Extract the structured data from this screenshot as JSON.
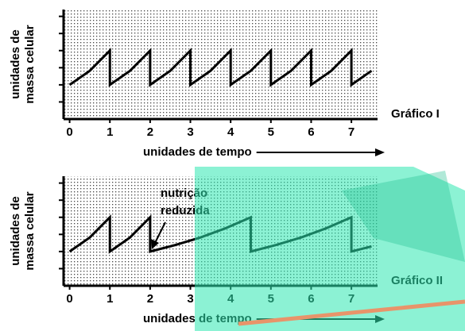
{
  "chart_data": [
    {
      "type": "line",
      "title": "Gráfico I",
      "ylabel": [
        "unidades de",
        "massa celular"
      ],
      "xlabel": "unidades de tempo",
      "x": [
        0,
        0.5,
        1,
        1,
        1.5,
        2,
        2,
        2.5,
        3,
        3,
        3.5,
        4,
        4,
        4.5,
        5,
        5,
        5.5,
        6,
        6,
        6.5,
        7,
        7,
        7.5
      ],
      "values": [
        1,
        1.41,
        2,
        1,
        1.41,
        2,
        1,
        1.41,
        2,
        1,
        1.41,
        2,
        1,
        1.41,
        2,
        1,
        1.41,
        2,
        1,
        1.41,
        2,
        1,
        1.41
      ],
      "color": "#000000",
      "xlim": [
        -0.15,
        7.65
      ],
      "xticks": [
        0,
        1,
        2,
        3,
        4,
        5,
        6,
        7
      ],
      "ylim": [
        0,
        3.2
      ],
      "yticks": [
        0.5,
        1,
        1.5,
        2,
        2.5,
        3
      ]
    },
    {
      "type": "line",
      "title": "Gráfico II",
      "ylabel": [
        "unidades de",
        "massa celular"
      ],
      "xlabel": "unidades de tempo",
      "annotation": [
        "nutrição",
        "reduzida"
      ],
      "x": [
        0,
        0.5,
        1,
        1,
        1.5,
        2,
        2,
        2.625,
        3.25,
        3.875,
        4.5,
        4.5,
        5.125,
        5.75,
        6.375,
        7,
        7,
        7.5
      ],
      "values": [
        1,
        1.41,
        2,
        1,
        1.41,
        2,
        1,
        1.19,
        1.41,
        1.68,
        2,
        1,
        1.19,
        1.41,
        1.68,
        2,
        1,
        1.15
      ],
      "color": "#000000",
      "xlim": [
        -0.15,
        7.65
      ],
      "xticks": [
        0,
        1,
        2,
        3,
        4,
        5,
        6,
        7
      ],
      "ylim": [
        0,
        3.2
      ],
      "yticks": [
        0.5,
        1,
        1.5,
        2,
        2.5,
        3
      ]
    }
  ]
}
